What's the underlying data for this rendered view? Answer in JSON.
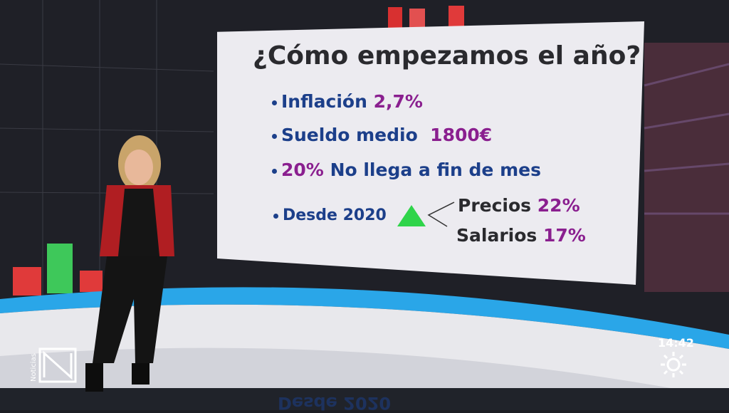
{
  "screen": {
    "board": {
      "title": "¿Cómo empezamos el año?",
      "items": [
        {
          "label": "Inflación",
          "value": "2,7%"
        },
        {
          "label": "Sueldo medio",
          "value": "1800€"
        },
        {
          "value": "20%",
          "label": "No llega a fin de mes"
        }
      ],
      "since": {
        "label": "Desde 2020",
        "rows": [
          {
            "label": "Precios",
            "value": "22%"
          },
          {
            "label": "Salarios",
            "value": "17%"
          }
        ]
      }
    },
    "overlay": {
      "channel": "Noticias",
      "time": "14:42"
    }
  }
}
